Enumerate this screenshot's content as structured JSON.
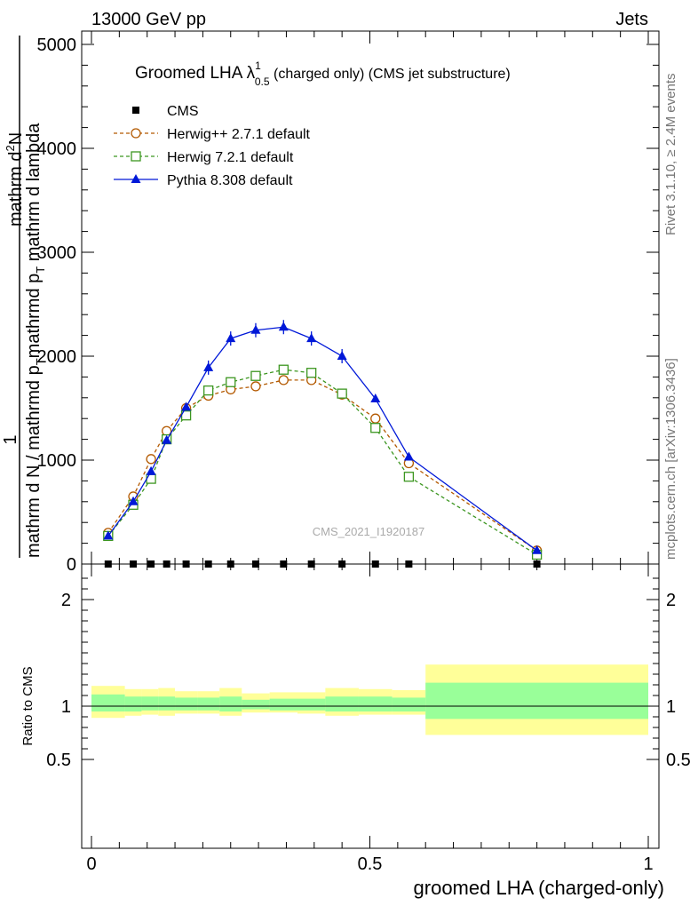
{
  "header": {
    "energy": "13000 GeV pp",
    "category": "Jets",
    "side_label_rivet": "Rivet 3.1.10, ≥ 2.4M events",
    "side_label_mcplots": "mcplots.cern.ch [arXiv:1306.3436]",
    "watermark": "CMS_2021_I1920187"
  },
  "title": {
    "main": "Groomed LHA λ",
    "sup": "1",
    "sub": "0.5",
    "rest": " (charged only) (CMS jet substructure)"
  },
  "ylabel_parts": [
    "1",
    "mathrm d N / mathrmd p",
    "T",
    "mathrmd p",
    "T",
    " mathrm d lambda"
  ],
  "ylabel_num": [
    "mathrm d",
    "2",
    "N"
  ],
  "ratio_ylabel": "Ratio to CMS",
  "xlabel": "groomed LHA (charged-only)",
  "colors": {
    "cms": "#000000",
    "herwig_pp": "#b35900",
    "herwig7": "#3c9620",
    "pythia": "#0018d8",
    "band_yellow": "#ffff99",
    "band_green": "#99ff99"
  },
  "legend": [
    {
      "label": "CMS",
      "marker": "filled-square",
      "color": "#000000"
    },
    {
      "label": "Herwig++ 2.7.1 default",
      "marker": "open-circle",
      "color": "#b35900"
    },
    {
      "label": "Herwig 7.2.1 default",
      "marker": "open-square",
      "color": "#3c9620"
    },
    {
      "label": "Pythia 8.308 default",
      "marker": "filled-triangle",
      "color": "#0018d8"
    }
  ],
  "chart_data": [
    {
      "type": "line",
      "panel": "main",
      "xlim": [
        0,
        1
      ],
      "ylim": [
        0,
        5000
      ],
      "yticks": [
        0,
        1000,
        2000,
        3000,
        4000,
        5000
      ],
      "xticks": [
        0,
        0.5,
        1
      ],
      "series": [
        {
          "name": "CMS",
          "x": [
            0.03,
            0.075,
            0.107,
            0.135,
            0.17,
            0.21,
            0.25,
            0.295,
            0.345,
            0.395,
            0.45,
            0.51,
            0.57,
            0.8
          ],
          "y": [
            0,
            0,
            0,
            0,
            0,
            0,
            0,
            0,
            0,
            0,
            0,
            0,
            0,
            0
          ]
        },
        {
          "name": "Herwig++ 2.7.1 default",
          "x": [
            0.03,
            0.075,
            0.107,
            0.135,
            0.17,
            0.21,
            0.25,
            0.295,
            0.345,
            0.395,
            0.45,
            0.51,
            0.57,
            0.8
          ],
          "y": [
            300,
            650,
            1010,
            1280,
            1500,
            1620,
            1680,
            1710,
            1770,
            1770,
            1630,
            1400,
            970,
            130
          ]
        },
        {
          "name": "Herwig 7.2.1 default",
          "x": [
            0.03,
            0.075,
            0.107,
            0.135,
            0.17,
            0.21,
            0.25,
            0.295,
            0.345,
            0.395,
            0.45,
            0.51,
            0.57,
            0.8
          ],
          "y": [
            270,
            570,
            820,
            1200,
            1430,
            1670,
            1750,
            1810,
            1870,
            1840,
            1640,
            1310,
            840,
            90
          ]
        },
        {
          "name": "Pythia 8.308 default",
          "x": [
            0.03,
            0.075,
            0.107,
            0.135,
            0.17,
            0.21,
            0.25,
            0.295,
            0.345,
            0.395,
            0.45,
            0.51,
            0.57,
            0.8
          ],
          "y": [
            270,
            600,
            890,
            1190,
            1510,
            1890,
            2170,
            2250,
            2280,
            2170,
            2000,
            1590,
            1030,
            130
          ]
        }
      ]
    },
    {
      "type": "area",
      "panel": "ratio",
      "xlim": [
        0,
        1
      ],
      "ylim": [
        0.4,
        2.3
      ],
      "yticks": [
        0.5,
        1,
        2
      ],
      "bins": [
        {
          "x0": 0.0,
          "x1": 0.06,
          "yellow": [
            0.89,
            1.19
          ],
          "green": [
            0.95,
            1.11
          ]
        },
        {
          "x0": 0.06,
          "x1": 0.09,
          "yellow": [
            0.91,
            1.16
          ],
          "green": [
            0.95,
            1.09
          ]
        },
        {
          "x0": 0.09,
          "x1": 0.12,
          "yellow": [
            0.92,
            1.16
          ],
          "green": [
            0.96,
            1.09
          ]
        },
        {
          "x0": 0.12,
          "x1": 0.15,
          "yellow": [
            0.91,
            1.17
          ],
          "green": [
            0.96,
            1.09
          ]
        },
        {
          "x0": 0.15,
          "x1": 0.19,
          "yellow": [
            0.93,
            1.14
          ],
          "green": [
            0.96,
            1.08
          ]
        },
        {
          "x0": 0.19,
          "x1": 0.23,
          "yellow": [
            0.93,
            1.14
          ],
          "green": [
            0.96,
            1.08
          ]
        },
        {
          "x0": 0.23,
          "x1": 0.27,
          "yellow": [
            0.91,
            1.17
          ],
          "green": [
            0.95,
            1.09
          ]
        },
        {
          "x0": 0.27,
          "x1": 0.32,
          "yellow": [
            0.94,
            1.12
          ],
          "green": [
            0.97,
            1.06
          ]
        },
        {
          "x0": 0.32,
          "x1": 0.37,
          "yellow": [
            0.94,
            1.13
          ],
          "green": [
            0.96,
            1.07
          ]
        },
        {
          "x0": 0.37,
          "x1": 0.42,
          "yellow": [
            0.93,
            1.13
          ],
          "green": [
            0.96,
            1.07
          ]
        },
        {
          "x0": 0.42,
          "x1": 0.48,
          "yellow": [
            0.91,
            1.17
          ],
          "green": [
            0.95,
            1.09
          ]
        },
        {
          "x0": 0.48,
          "x1": 0.54,
          "yellow": [
            0.92,
            1.16
          ],
          "green": [
            0.95,
            1.09
          ]
        },
        {
          "x0": 0.54,
          "x1": 0.6,
          "yellow": [
            0.92,
            1.15
          ],
          "green": [
            0.95,
            1.08
          ]
        },
        {
          "x0": 0.6,
          "x1": 1.0,
          "yellow": [
            0.73,
            1.39
          ],
          "green": [
            0.88,
            1.22
          ]
        }
      ],
      "reference_line": 1
    }
  ]
}
